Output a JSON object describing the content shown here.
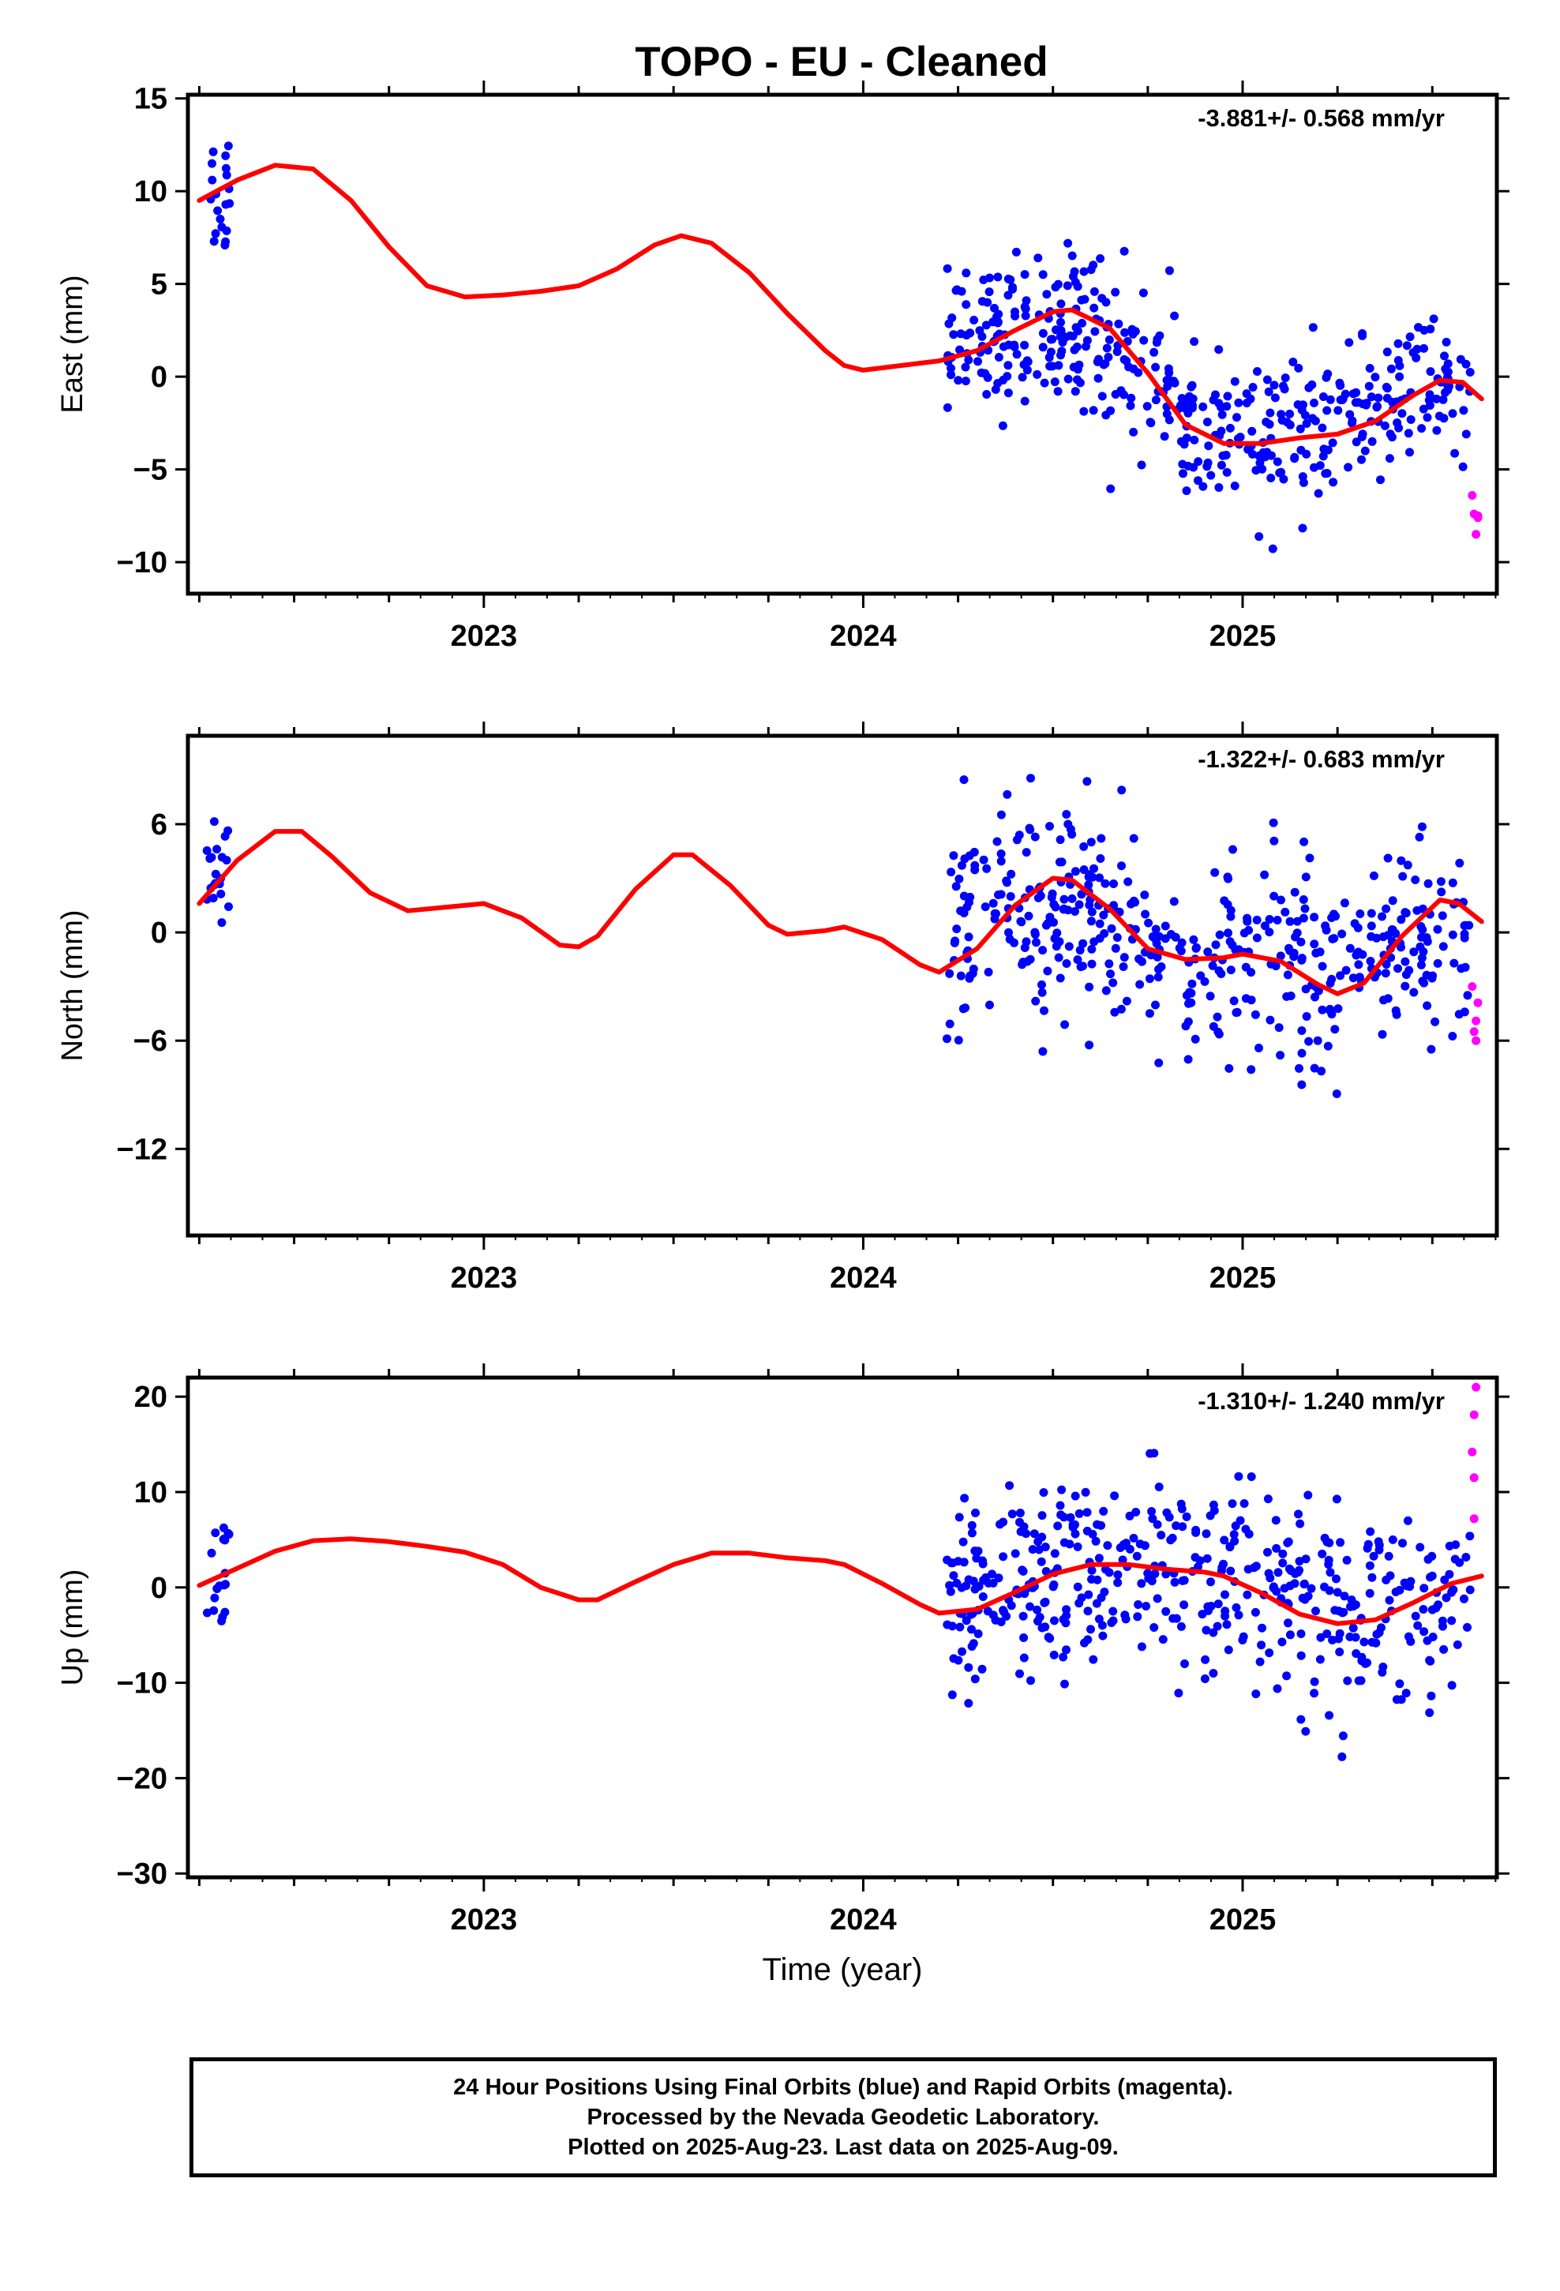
{
  "title": "TOPO  - EU - Cleaned",
  "caption": [
    "24 Hour Positions Using Final Orbits (blue) and Rapid Orbits (magenta).",
    "Processed by the Nevada Geodetic Laboratory.",
    "Plotted on 2025-Aug-23. Last data on 2025-Aug-09."
  ],
  "colors": {
    "final": "#0000ff",
    "rapid": "#ff00ff",
    "model": "#ff0000",
    "frame": "#000000"
  },
  "chart_data": [
    {
      "type": "scatter",
      "ylabel": "East (mm)",
      "xlabel": "",
      "rate_label": "-3.881+/- 0.568 mm/yr",
      "xlim": [
        2022.22,
        2025.67
      ],
      "ylim": [
        -11.7,
        15.2
      ],
      "xticks": [
        2023,
        2024,
        2025
      ],
      "yticks": [
        15,
        10,
        5,
        0,
        -5,
        -10
      ],
      "model_curve": [
        [
          2022.25,
          9.5
        ],
        [
          2022.35,
          10.6
        ],
        [
          2022.45,
          11.4
        ],
        [
          2022.55,
          11.2
        ],
        [
          2022.65,
          9.5
        ],
        [
          2022.75,
          7.0
        ],
        [
          2022.85,
          4.9
        ],
        [
          2022.95,
          4.3
        ],
        [
          2023.05,
          4.4
        ],
        [
          2023.15,
          4.6
        ],
        [
          2023.25,
          4.9
        ],
        [
          2023.35,
          5.8
        ],
        [
          2023.45,
          7.1
        ],
        [
          2023.52,
          7.6
        ],
        [
          2023.6,
          7.2
        ],
        [
          2023.7,
          5.6
        ],
        [
          2023.8,
          3.4
        ],
        [
          2023.9,
          1.4
        ],
        [
          2023.95,
          0.6
        ],
        [
          2024.0,
          0.35
        ],
        [
          2024.1,
          0.6
        ],
        [
          2024.2,
          0.85
        ],
        [
          2024.3,
          1.4
        ],
        [
          2024.4,
          2.5
        ],
        [
          2024.5,
          3.5
        ],
        [
          2024.55,
          3.6
        ],
        [
          2024.65,
          2.6
        ],
        [
          2024.75,
          0.2
        ],
        [
          2024.85,
          -2.6
        ],
        [
          2024.95,
          -3.6
        ],
        [
          2025.05,
          -3.6
        ],
        [
          2025.15,
          -3.3
        ],
        [
          2025.25,
          -3.1
        ],
        [
          2025.35,
          -2.4
        ],
        [
          2025.45,
          -1.0
        ],
        [
          2025.52,
          -0.2
        ],
        [
          2025.58,
          -0.3
        ],
        [
          2025.63,
          -1.2
        ]
      ],
      "rapid_points": [
        [
          2025.605,
          -6.4
        ],
        [
          2025.61,
          -7.4
        ],
        [
          2025.62,
          -7.6
        ],
        [
          2025.615,
          -8.5
        ],
        [
          2025.62,
          -7.5
        ]
      ],
      "final_summary": {
        "clusters": [
          {
            "x_range": [
              2022.27,
              2022.33
            ],
            "y_mean": 9.8,
            "y_sd": 2.3,
            "n": 20
          },
          {
            "x_range": [
              2024.22,
              2024.65
            ],
            "y_mean": 2.2,
            "y_sd": 2.5,
            "n": 170
          },
          {
            "x_range": [
              2024.65,
              2024.82
            ],
            "y_mean": 0.4,
            "y_sd": 2.7,
            "n": 50
          },
          {
            "x_range": [
              2024.82,
              2025.25
            ],
            "y_mean": -3.0,
            "y_sd": 2.6,
            "n": 140
          },
          {
            "x_range": [
              2025.25,
              2025.6
            ],
            "y_mean": -0.8,
            "y_sd": 2.1,
            "n": 110
          }
        ]
      }
    },
    {
      "type": "scatter",
      "ylabel": "North (mm)",
      "xlabel": "",
      "rate_label": "-1.322+/- 0.683 mm/yr",
      "xlim": [
        2022.22,
        2025.67
      ],
      "ylim": [
        -16.8,
        10.9
      ],
      "xticks": [
        2023,
        2024,
        2025
      ],
      "yticks": [
        6,
        0,
        -6,
        -12
      ],
      "model_curve": [
        [
          2022.25,
          1.6
        ],
        [
          2022.35,
          4.0
        ],
        [
          2022.45,
          5.6
        ],
        [
          2022.52,
          5.6
        ],
        [
          2022.6,
          4.2
        ],
        [
          2022.7,
          2.2
        ],
        [
          2022.8,
          1.2
        ],
        [
          2022.9,
          1.4
        ],
        [
          2023.0,
          1.6
        ],
        [
          2023.1,
          0.8
        ],
        [
          2023.2,
          -0.7
        ],
        [
          2023.25,
          -0.8
        ],
        [
          2023.3,
          -0.2
        ],
        [
          2023.4,
          2.4
        ],
        [
          2023.5,
          4.3
        ],
        [
          2023.55,
          4.3
        ],
        [
          2023.65,
          2.6
        ],
        [
          2023.75,
          0.4
        ],
        [
          2023.8,
          -0.1
        ],
        [
          2023.9,
          0.1
        ],
        [
          2023.95,
          0.3
        ],
        [
          2024.05,
          -0.4
        ],
        [
          2024.15,
          -1.8
        ],
        [
          2024.2,
          -2.2
        ],
        [
          2024.3,
          -0.9
        ],
        [
          2024.4,
          1.5
        ],
        [
          2024.5,
          3.0
        ],
        [
          2024.55,
          2.9
        ],
        [
          2024.65,
          1.3
        ],
        [
          2024.75,
          -0.9
        ],
        [
          2024.85,
          -1.5
        ],
        [
          2024.95,
          -1.4
        ],
        [
          2025.0,
          -1.2
        ],
        [
          2025.1,
          -1.6
        ],
        [
          2025.2,
          -2.9
        ],
        [
          2025.25,
          -3.4
        ],
        [
          2025.32,
          -2.8
        ],
        [
          2025.42,
          -0.2
        ],
        [
          2025.52,
          1.8
        ],
        [
          2025.57,
          1.6
        ],
        [
          2025.63,
          0.6
        ]
      ],
      "rapid_points": [
        [
          2025.605,
          -3.0
        ],
        [
          2025.615,
          -4.9
        ],
        [
          2025.62,
          -3.9
        ],
        [
          2025.61,
          -5.5
        ],
        [
          2025.615,
          -6.0
        ]
      ],
      "final_summary": {
        "clusters": [
          {
            "x_range": [
              2022.27,
              2022.33
            ],
            "y_mean": 3.0,
            "y_sd": 2.0,
            "n": 20
          },
          {
            "x_range": [
              2024.22,
              2024.65
            ],
            "y_mean": 0.6,
            "y_sd": 3.6,
            "n": 170
          },
          {
            "x_range": [
              2024.65,
              2024.82
            ],
            "y_mean": -1.0,
            "y_sd": 3.2,
            "n": 50
          },
          {
            "x_range": [
              2024.82,
              2025.25
            ],
            "y_mean": -1.8,
            "y_sd": 3.8,
            "n": 140
          },
          {
            "x_range": [
              2025.25,
              2025.6
            ],
            "y_mean": -0.6,
            "y_sd": 3.0,
            "n": 110
          }
        ]
      }
    },
    {
      "type": "scatter",
      "ylabel": "Up (mm)",
      "xlabel": "Time (year)",
      "rate_label": "-1.310+/- 1.240 mm/yr",
      "xlim": [
        2022.22,
        2025.67
      ],
      "ylim": [
        -30.4,
        22.0
      ],
      "xticks": [
        2023,
        2024,
        2025
      ],
      "yticks": [
        20,
        10,
        0,
        -10,
        -20,
        -30
      ],
      "model_curve": [
        [
          2022.25,
          0.2
        ],
        [
          2022.35,
          2.0
        ],
        [
          2022.45,
          3.8
        ],
        [
          2022.55,
          4.9
        ],
        [
          2022.65,
          5.1
        ],
        [
          2022.75,
          4.8
        ],
        [
          2022.85,
          4.3
        ],
        [
          2022.95,
          3.7
        ],
        [
          2023.05,
          2.4
        ],
        [
          2023.15,
          0.0
        ],
        [
          2023.25,
          -1.3
        ],
        [
          2023.3,
          -1.3
        ],
        [
          2023.4,
          0.6
        ],
        [
          2023.5,
          2.4
        ],
        [
          2023.6,
          3.6
        ],
        [
          2023.7,
          3.6
        ],
        [
          2023.8,
          3.1
        ],
        [
          2023.9,
          2.8
        ],
        [
          2023.95,
          2.4
        ],
        [
          2024.05,
          0.4
        ],
        [
          2024.15,
          -1.8
        ],
        [
          2024.2,
          -2.7
        ],
        [
          2024.3,
          -2.3
        ],
        [
          2024.4,
          -0.5
        ],
        [
          2024.5,
          1.4
        ],
        [
          2024.6,
          2.4
        ],
        [
          2024.7,
          2.4
        ],
        [
          2024.8,
          1.9
        ],
        [
          2024.9,
          1.6
        ],
        [
          2024.95,
          1.2
        ],
        [
          2025.05,
          -0.6
        ],
        [
          2025.15,
          -2.8
        ],
        [
          2025.25,
          -3.8
        ],
        [
          2025.35,
          -3.4
        ],
        [
          2025.45,
          -1.6
        ],
        [
          2025.55,
          0.4
        ],
        [
          2025.63,
          1.2
        ]
      ],
      "rapid_points": [
        [
          2025.615,
          21.0
        ],
        [
          2025.61,
          18.1
        ],
        [
          2025.605,
          14.2
        ],
        [
          2025.61,
          11.5
        ],
        [
          2025.61,
          7.2
        ]
      ],
      "final_summary": {
        "clusters": [
          {
            "x_range": [
              2022.27,
              2022.33
            ],
            "y_mean": 1.5,
            "y_sd": 4.5,
            "n": 20
          },
          {
            "x_range": [
              2024.22,
              2024.65
            ],
            "y_mean": -1.0,
            "y_sd": 6.5,
            "n": 170
          },
          {
            "x_range": [
              2024.65,
              2024.82
            ],
            "y_mean": 2.4,
            "y_sd": 6.5,
            "n": 50
          },
          {
            "x_range": [
              2024.82,
              2025.25
            ],
            "y_mean": 0.0,
            "y_sd": 6.5,
            "n": 140
          },
          {
            "x_range": [
              2025.25,
              2025.6
            ],
            "y_mean": -2.5,
            "y_sd": 5.5,
            "n": 110
          }
        ]
      }
    }
  ]
}
